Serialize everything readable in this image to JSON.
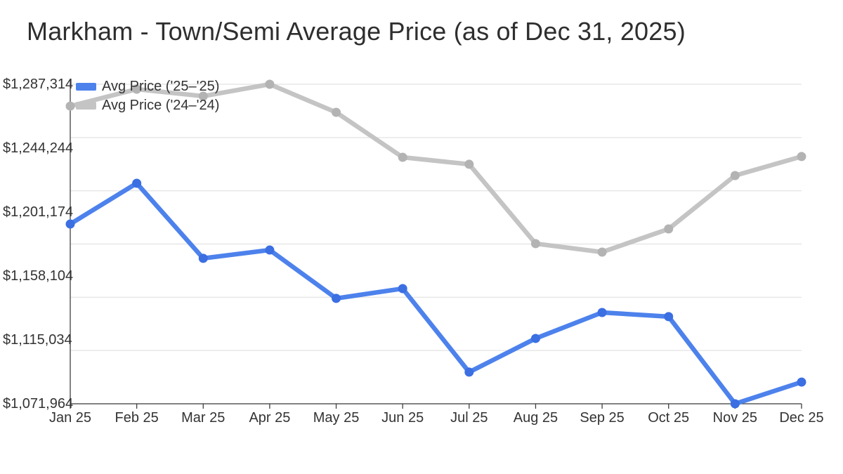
{
  "title": "Markham - Town/Semi Average Price (as of Dec 31, 2025)",
  "legend": [
    {
      "label": "Avg Price ('25–'25)",
      "color": "#4d82ec"
    },
    {
      "label": "Avg Price ('24–'24)",
      "color": "#c4c4c4"
    }
  ],
  "chart_data": {
    "type": "line",
    "title": "Markham - Town/Semi Average Price (as of Dec 31, 2025)",
    "categories": [
      "Jan 25",
      "Feb 25",
      "Mar 25",
      "Apr 25",
      "May 25",
      "Jun 25",
      "Jul 25",
      "Aug 25",
      "Sep 25",
      "Oct 25",
      "Nov 25",
      "Dec 25"
    ],
    "series": [
      {
        "name": "Avg Price ('25–'25)",
        "line_color": "#4d82ec",
        "point_color": "#3b6fe2",
        "values": [
          1193100,
          1220600,
          1170000,
          1175600,
          1143000,
          1149600,
          1093300,
          1116000,
          1133500,
          1130700,
          1071964,
          1086600
        ]
      },
      {
        "name": "Avg Price ('24–'24)",
        "line_color": "#c4c4c4",
        "point_color": "#b3b3b3",
        "values": [
          1272600,
          1284000,
          1279300,
          1287314,
          1268400,
          1238100,
          1233400,
          1179900,
          1174200,
          1189800,
          1225800,
          1238600
        ]
      }
    ],
    "y_tick_labels": [
      "$1,287,314",
      "$1,244,244",
      "$1,201,174",
      "$1,158,104",
      "$1,115,034",
      "$1,071,964"
    ],
    "ylim": [
      1071964,
      1287314
    ],
    "grid": true,
    "gridline_count": 7,
    "legend_position": "inside-top-left",
    "colors": {
      "gridline": "#e7e7e7",
      "axis": "#3f3f3f",
      "label_text": "#333333",
      "title_text": "#2e2e2e"
    }
  }
}
